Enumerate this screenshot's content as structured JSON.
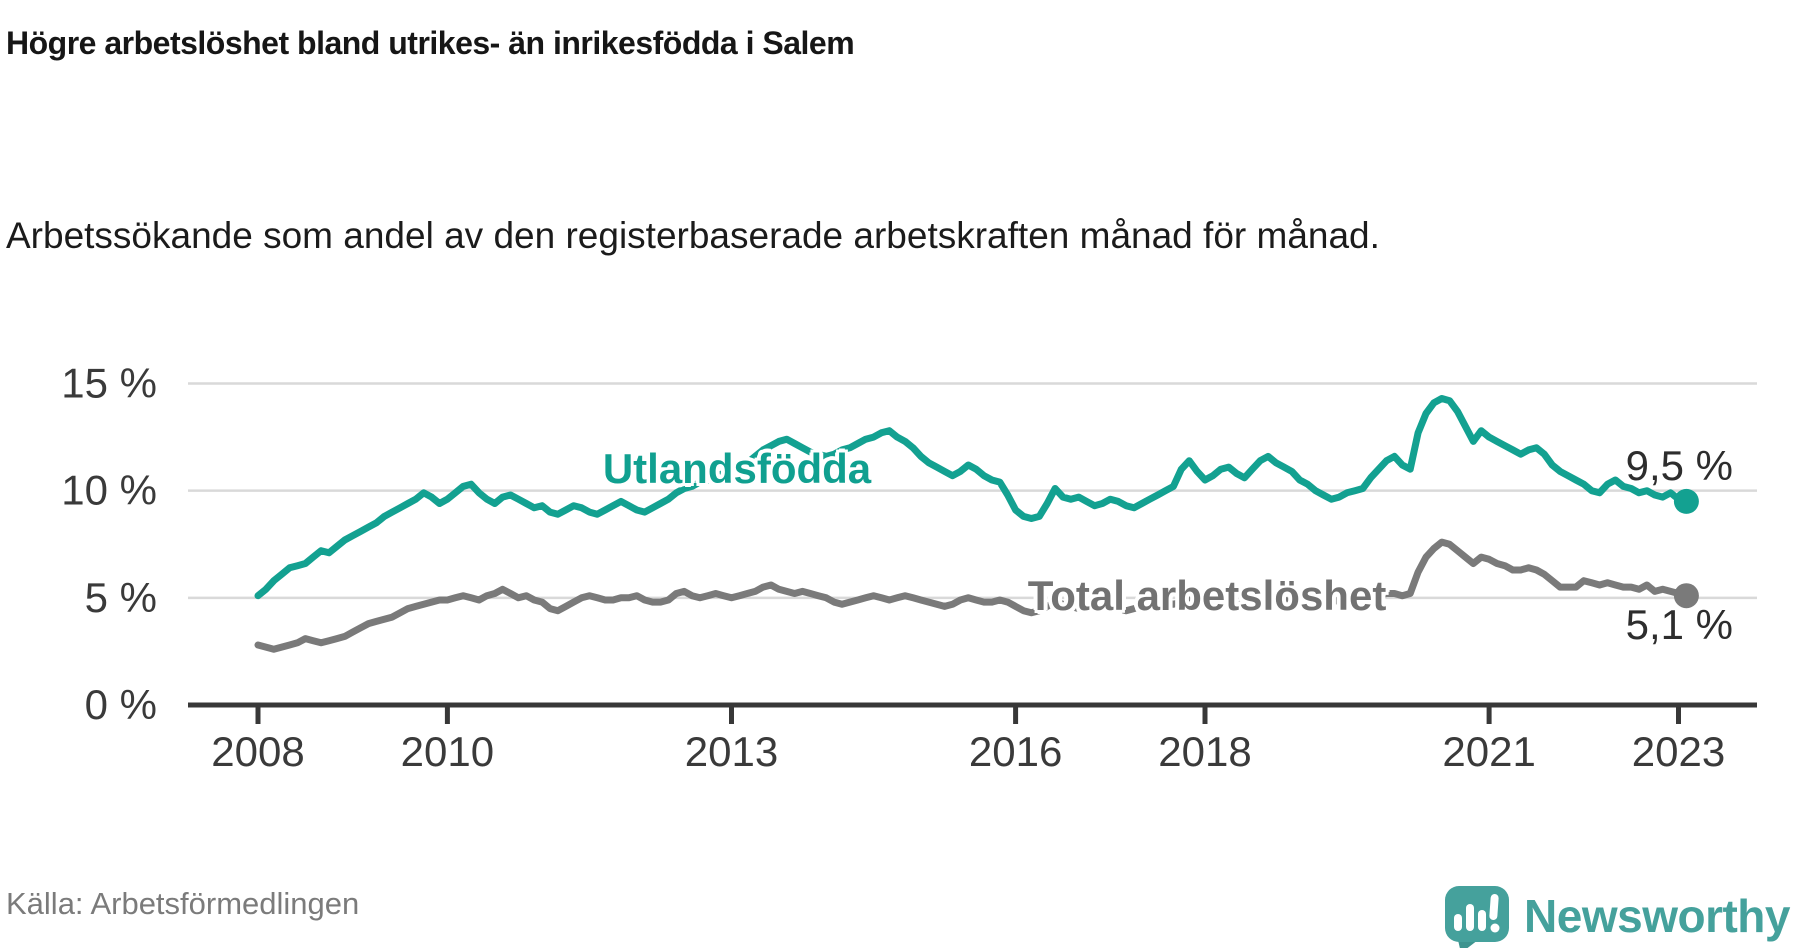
{
  "header": {
    "title": "Högre arbetslöshet bland utrikes- än inrikesfödda i Salem",
    "subtitle": "Arbetssökande som andel av den registerbaserade arbetskraften månad för månad."
  },
  "footer": {
    "source": "Källa: Arbetsförmedlingen",
    "brand": "Newsworthy"
  },
  "colors": {
    "teal_line": "#13a191",
    "gray_line": "#7a7a7a",
    "gridline": "#d9d9d9",
    "axis": "#383838",
    "tick_text": "#3a3a3a"
  },
  "chart_data": {
    "type": "line",
    "title": "Högre arbetslöshet bland utrikes- än inrikesfödda i Salem",
    "subtitle": "Arbetssökande som andel av den registerbaserade arbetskraften månad för månad.",
    "source": "Källa: Arbetsförmedlingen",
    "grid": "horizontal-only",
    "legend_position": "inline-labels-on-lines",
    "x_axis": {
      "unit": "year-month",
      "range": [
        2008.0,
        2023.85
      ],
      "tick_years": [
        2008,
        2010,
        2013,
        2016,
        2018,
        2021,
        2023
      ],
      "tick_labels": [
        "2008",
        "2010",
        "2013",
        "2016",
        "2018",
        "2021",
        "2023"
      ]
    },
    "y_axis": {
      "unit": "percent",
      "range": [
        0,
        15.7
      ],
      "tick_values": [
        0,
        5,
        10,
        15
      ],
      "tick_labels": [
        "0 %",
        "5 %",
        "10 %",
        "15 %"
      ]
    },
    "start_year": 2008,
    "months_per_step": 1,
    "series": [
      {
        "name": "Utlandsfödda",
        "color": "#13a191",
        "end_label": "9,5 %",
        "end_value": 9.5,
        "values": [
          5.1,
          5.4,
          5.8,
          6.1,
          6.4,
          6.5,
          6.6,
          6.9,
          7.2,
          7.1,
          7.4,
          7.7,
          7.9,
          8.1,
          8.3,
          8.5,
          8.8,
          9.0,
          9.2,
          9.4,
          9.6,
          9.9,
          9.7,
          9.4,
          9.6,
          9.9,
          10.2,
          10.3,
          9.9,
          9.6,
          9.4,
          9.7,
          9.8,
          9.6,
          9.4,
          9.2,
          9.3,
          9.0,
          8.9,
          9.1,
          9.3,
          9.2,
          9.0,
          8.9,
          9.1,
          9.3,
          9.5,
          9.3,
          9.1,
          9.0,
          9.2,
          9.4,
          9.6,
          9.9,
          10.1,
          10.2,
          10.4,
          10.5,
          10.7,
          10.8,
          10.9,
          11.1,
          11.3,
          11.6,
          11.9,
          12.1,
          12.3,
          12.4,
          12.2,
          12.0,
          11.8,
          11.7,
          11.6,
          11.7,
          11.9,
          12.0,
          12.2,
          12.4,
          12.5,
          12.7,
          12.8,
          12.5,
          12.3,
          12.0,
          11.6,
          11.3,
          11.1,
          10.9,
          10.7,
          10.9,
          11.2,
          11.0,
          10.7,
          10.5,
          10.4,
          9.8,
          9.1,
          8.8,
          8.7,
          8.8,
          9.4,
          10.1,
          9.7,
          9.6,
          9.7,
          9.5,
          9.3,
          9.4,
          9.6,
          9.5,
          9.3,
          9.2,
          9.4,
          9.6,
          9.8,
          10.0,
          10.2,
          11.0,
          11.4,
          10.9,
          10.5,
          10.7,
          11.0,
          11.1,
          10.8,
          10.6,
          11.0,
          11.4,
          11.6,
          11.3,
          11.1,
          10.9,
          10.5,
          10.3,
          10.0,
          9.8,
          9.6,
          9.7,
          9.9,
          10.0,
          10.1,
          10.6,
          11.0,
          11.4,
          11.6,
          11.2,
          11.0,
          12.7,
          13.6,
          14.1,
          14.3,
          14.2,
          13.7,
          13.0,
          12.3,
          12.8,
          12.5,
          12.3,
          12.1,
          11.9,
          11.7,
          11.9,
          12.0,
          11.7,
          11.2,
          10.9,
          10.7,
          10.5,
          10.3,
          10.0,
          9.9,
          10.3,
          10.5,
          10.2,
          10.1,
          9.9,
          10.0,
          9.8,
          9.7,
          9.9,
          9.6,
          9.5
        ]
      },
      {
        "name": "Total arbetslöshet",
        "color": "#7a7a7a",
        "end_label": "5,1 %",
        "end_value": 5.1,
        "values": [
          2.8,
          2.7,
          2.6,
          2.7,
          2.8,
          2.9,
          3.1,
          3.0,
          2.9,
          3.0,
          3.1,
          3.2,
          3.4,
          3.6,
          3.8,
          3.9,
          4.0,
          4.1,
          4.3,
          4.5,
          4.6,
          4.7,
          4.8,
          4.9,
          4.9,
          5.0,
          5.1,
          5.0,
          4.9,
          5.1,
          5.2,
          5.4,
          5.2,
          5.0,
          5.1,
          4.9,
          4.8,
          4.5,
          4.4,
          4.6,
          4.8,
          5.0,
          5.1,
          5.0,
          4.9,
          4.9,
          5.0,
          5.0,
          5.1,
          4.9,
          4.8,
          4.8,
          4.9,
          5.2,
          5.3,
          5.1,
          5.0,
          5.1,
          5.2,
          5.1,
          5.0,
          5.1,
          5.2,
          5.3,
          5.5,
          5.6,
          5.4,
          5.3,
          5.2,
          5.3,
          5.2,
          5.1,
          5.0,
          4.8,
          4.7,
          4.8,
          4.9,
          5.0,
          5.1,
          5.0,
          4.9,
          5.0,
          5.1,
          5.0,
          4.9,
          4.8,
          4.7,
          4.6,
          4.7,
          4.9,
          5.0,
          4.9,
          4.8,
          4.8,
          4.9,
          4.8,
          4.6,
          4.4,
          4.3,
          4.4,
          4.6,
          4.8,
          4.7,
          4.6,
          4.5,
          4.6,
          4.7,
          4.6,
          4.6,
          4.5,
          4.4,
          4.5,
          4.6,
          4.8,
          4.9,
          4.8,
          4.7,
          4.8,
          4.9,
          4.8,
          4.8,
          4.7,
          4.6,
          4.7,
          4.6,
          4.8,
          4.9,
          5.0,
          4.9,
          4.8,
          4.9,
          4.8,
          4.8,
          4.7,
          4.6,
          4.7,
          4.8,
          4.9,
          5.0,
          5.0,
          4.9,
          5.0,
          5.1,
          5.2,
          5.2,
          5.1,
          5.2,
          6.2,
          6.9,
          7.3,
          7.6,
          7.5,
          7.2,
          6.9,
          6.6,
          6.9,
          6.8,
          6.6,
          6.5,
          6.3,
          6.3,
          6.4,
          6.3,
          6.1,
          5.8,
          5.5,
          5.5,
          5.5,
          5.8,
          5.7,
          5.6,
          5.7,
          5.6,
          5.5,
          5.5,
          5.4,
          5.6,
          5.3,
          5.4,
          5.3,
          5.2,
          5.1
        ]
      }
    ]
  }
}
